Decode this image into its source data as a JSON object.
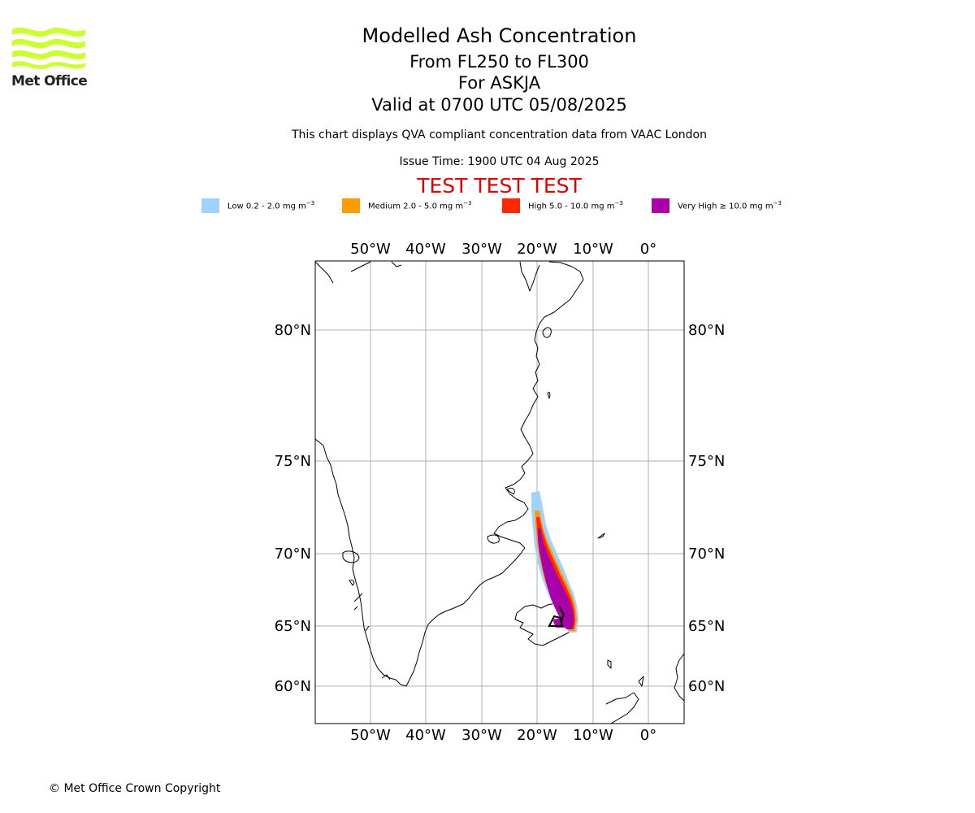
{
  "logo": {
    "text": "Met Office",
    "color": "#ccff33"
  },
  "header": {
    "title": "Modelled Ash Concentration",
    "levels": "From FL250 to FL300",
    "volcano": "For ASKJA",
    "valid": "Valid at 0700 UTC 05/08/2025",
    "description": "This chart displays QVA compliant concentration data from VAAC London",
    "issue_time": "Issue Time: 1900 UTC 04 Aug 2025",
    "test_banner": "TEST TEST TEST"
  },
  "legend": [
    {
      "label": "Low 0.2 - 2.0 mg m",
      "color": "#a0d2ff"
    },
    {
      "label": "Medium 2.0 - 5.0 mg m",
      "color": "#ff9a00"
    },
    {
      "label": "High 5.0 - 10.0 mg m",
      "color": "#ff2800"
    },
    {
      "label": "Very High ≥ 10.0 mg m",
      "color": "#aa00aa"
    }
  ],
  "legend_unit_exponent": "−3",
  "map": {
    "lon_labels": [
      "50°W",
      "40°W",
      "30°W",
      "20°W",
      "10°W",
      "0°"
    ],
    "lat_labels": [
      "80°N",
      "75°N",
      "70°N",
      "65°N",
      "60°N"
    ],
    "gridline_color": "#b0b0b0"
  },
  "copyright": "© Met Office Crown Copyright"
}
